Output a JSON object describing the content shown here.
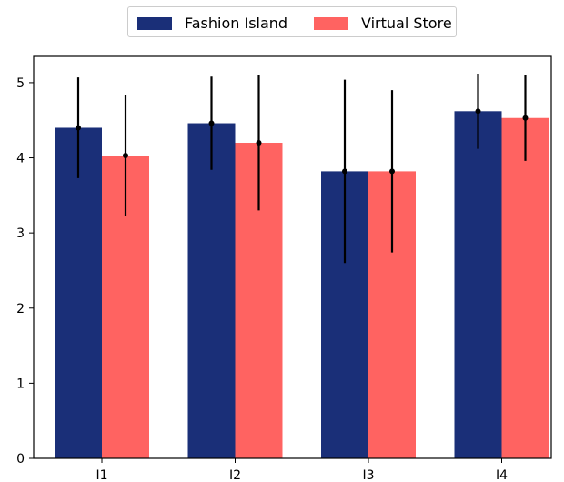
{
  "chart_data": {
    "type": "bar",
    "categories": [
      "I1",
      "I2",
      "I3",
      "I4"
    ],
    "series": [
      {
        "name": "Fashion Island",
        "color": "#1a2f78",
        "values": [
          4.4,
          4.46,
          3.82,
          4.62
        ],
        "error": [
          0.67,
          0.62,
          1.22,
          0.5
        ]
      },
      {
        "name": "Virtual Store",
        "color": "#ff6361",
        "values": [
          4.03,
          4.2,
          3.82,
          4.53
        ],
        "error": [
          0.8,
          0.9,
          1.08,
          0.57
        ]
      }
    ],
    "ylim": [
      0,
      5.35
    ],
    "yticks": [
      0,
      1,
      2,
      3,
      4,
      5
    ],
    "xlabel": "",
    "ylabel": "",
    "title": "",
    "legend_position": "top-center",
    "grid": false
  }
}
